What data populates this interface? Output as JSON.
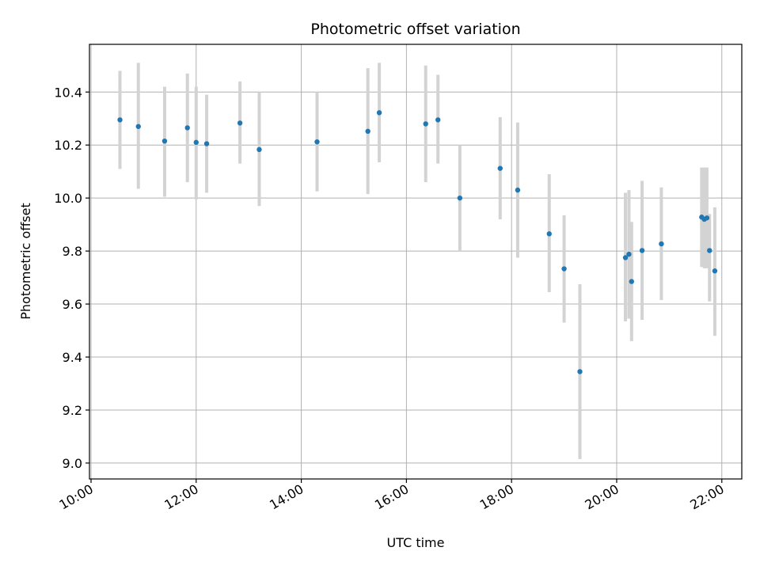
{
  "chart_data": {
    "type": "scatter",
    "title": "Photometric offset variation",
    "xlabel": "UTC time",
    "ylabel": "Photometric offset",
    "x_unit": "hours (UTC)",
    "xlim": [
      9.97,
      22.38
    ],
    "ylim": [
      8.94,
      10.58
    ],
    "x_ticks": [
      {
        "value": 10,
        "label": "10:00"
      },
      {
        "value": 12,
        "label": "12:00"
      },
      {
        "value": 14,
        "label": "14:00"
      },
      {
        "value": 16,
        "label": "16:00"
      },
      {
        "value": 18,
        "label": "18:00"
      },
      {
        "value": 20,
        "label": "20:00"
      },
      {
        "value": 22,
        "label": "22:00"
      }
    ],
    "y_ticks": [
      {
        "value": 9.0,
        "label": "9.0"
      },
      {
        "value": 9.2,
        "label": "9.2"
      },
      {
        "value": 9.4,
        "label": "9.4"
      },
      {
        "value": 9.6,
        "label": "9.6"
      },
      {
        "value": 9.8,
        "label": "9.8"
      },
      {
        "value": 10.0,
        "label": "10.0"
      },
      {
        "value": 10.2,
        "label": "10.2"
      },
      {
        "value": 10.4,
        "label": "10.4"
      }
    ],
    "grid": true,
    "legend": "none",
    "point_color": "#1f77b4",
    "errorbar_color": "#d3d3d3",
    "points": [
      {
        "t": "10:33",
        "y": 10.295,
        "ylo": 10.11,
        "yhi": 10.48
      },
      {
        "t": "10:54",
        "y": 10.27,
        "ylo": 10.035,
        "yhi": 10.51
      },
      {
        "t": "11:24",
        "y": 10.215,
        "ylo": 10.005,
        "yhi": 10.42
      },
      {
        "t": "11:50",
        "y": 10.265,
        "ylo": 10.06,
        "yhi": 10.47
      },
      {
        "t": "12:00",
        "y": 10.21,
        "ylo": 9.995,
        "yhi": 10.42
      },
      {
        "t": "12:12",
        "y": 10.205,
        "ylo": 10.02,
        "yhi": 10.39
      },
      {
        "t": "12:50",
        "y": 10.283,
        "ylo": 10.13,
        "yhi": 10.44
      },
      {
        "t": "13:12",
        "y": 10.183,
        "ylo": 9.97,
        "yhi": 10.4
      },
      {
        "t": "14:18",
        "y": 10.212,
        "ylo": 10.025,
        "yhi": 10.4
      },
      {
        "t": "15:16",
        "y": 10.252,
        "ylo": 10.015,
        "yhi": 10.49
      },
      {
        "t": "15:29",
        "y": 10.322,
        "ylo": 10.135,
        "yhi": 10.51
      },
      {
        "t": "16:22",
        "y": 10.28,
        "ylo": 10.06,
        "yhi": 10.5
      },
      {
        "t": "16:36",
        "y": 10.295,
        "ylo": 10.13,
        "yhi": 10.465
      },
      {
        "t": "17:01",
        "y": 10.0,
        "ylo": 9.8,
        "yhi": 10.2
      },
      {
        "t": "17:47",
        "y": 10.112,
        "ylo": 9.92,
        "yhi": 10.305
      },
      {
        "t": "18:07",
        "y": 10.03,
        "ylo": 9.775,
        "yhi": 10.285
      },
      {
        "t": "18:43",
        "y": 9.865,
        "ylo": 9.645,
        "yhi": 10.09
      },
      {
        "t": "19:00",
        "y": 9.733,
        "ylo": 9.53,
        "yhi": 9.935
      },
      {
        "t": "19:18",
        "y": 9.345,
        "ylo": 9.015,
        "yhi": 9.675
      },
      {
        "t": "20:10",
        "y": 9.775,
        "ylo": 9.535,
        "yhi": 10.02
      },
      {
        "t": "20:14",
        "y": 9.788,
        "ylo": 9.545,
        "yhi": 10.03
      },
      {
        "t": "20:17",
        "y": 9.685,
        "ylo": 9.46,
        "yhi": 9.91
      },
      {
        "t": "20:29",
        "y": 9.802,
        "ylo": 9.54,
        "yhi": 10.065
      },
      {
        "t": "20:51",
        "y": 9.827,
        "ylo": 9.615,
        "yhi": 10.04
      },
      {
        "t": "21:37",
        "y": 9.928,
        "ylo": 9.74,
        "yhi": 10.115
      },
      {
        "t": "21:40",
        "y": 9.92,
        "ylo": 9.735,
        "yhi": 10.115
      },
      {
        "t": "21:43",
        "y": 9.925,
        "ylo": 9.735,
        "yhi": 10.115
      },
      {
        "t": "21:46",
        "y": 9.802,
        "ylo": 9.61,
        "yhi": 9.94
      },
      {
        "t": "21:52",
        "y": 9.725,
        "ylo": 9.48,
        "yhi": 9.965
      }
    ]
  }
}
